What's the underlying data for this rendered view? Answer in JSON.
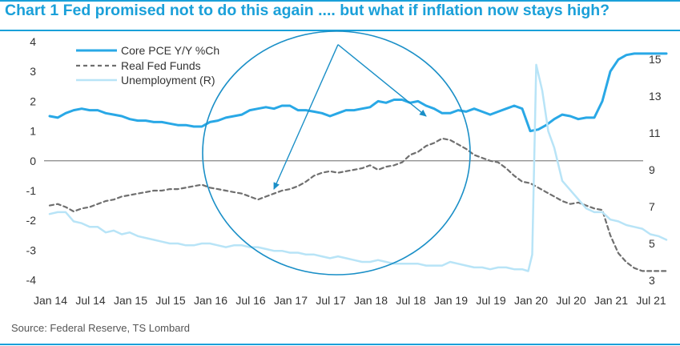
{
  "title": "Chart 1 Fed promised not to do this again .... but what if inflation now stays high?",
  "source": "Source: Federal Reserve, TS Lombard",
  "colors": {
    "title": "#1aa0d9",
    "core_pce": "#29a8e6",
    "real_fed_funds": "#6f6f6f",
    "unemployment": "#b8e4f7",
    "annotation": "#1a8fc7",
    "axis": "#555555",
    "frame": "#1aa0d9"
  },
  "chart_data": {
    "type": "line",
    "title": "Fed promised not to do this again .... but what if inflation now stays high?",
    "x_labels": [
      "Jan 14",
      "Jul 14",
      "Jan 15",
      "Jul 15",
      "Jan 16",
      "Jul 16",
      "Jan 17",
      "Jul 17",
      "Jan 18",
      "Jul 18",
      "Jan 19",
      "Jul 19",
      "Jan 20",
      "Jul 20",
      "Jan 21",
      "Jul 21"
    ],
    "x_range": [
      0,
      15.5
    ],
    "y_left": {
      "min": -4,
      "max": 4,
      "ticks": [
        4,
        3,
        2,
        1,
        0,
        -1,
        -2,
        -3,
        -4
      ]
    },
    "y_right": {
      "min": 3,
      "max": 16,
      "ticks": [
        15,
        13,
        11,
        9,
        7,
        5,
        3
      ]
    },
    "zero_line": true,
    "legend": {
      "position": "top-left",
      "entries": [
        "Core PCE Y/Y %Ch",
        "Real Fed Funds",
        "Unemployment (R)"
      ]
    },
    "series": [
      {
        "name": "Core PCE Y/Y %Ch",
        "axis": "left",
        "style": "solid-thick",
        "x": [
          0,
          0.2,
          0.4,
          0.6,
          0.8,
          1.0,
          1.2,
          1.4,
          1.6,
          1.8,
          2.0,
          2.2,
          2.4,
          2.6,
          2.8,
          3.0,
          3.2,
          3.4,
          3.6,
          3.8,
          4.0,
          4.2,
          4.4,
          4.6,
          4.8,
          5.0,
          5.2,
          5.4,
          5.6,
          5.8,
          6.0,
          6.2,
          6.4,
          6.6,
          6.8,
          7.0,
          7.2,
          7.4,
          7.6,
          7.8,
          8.0,
          8.2,
          8.4,
          8.6,
          8.8,
          9.0,
          9.2,
          9.4,
          9.6,
          9.8,
          10.0,
          10.2,
          10.4,
          10.6,
          10.8,
          11.0,
          11.2,
          11.4,
          11.6,
          11.8,
          12.0,
          12.2,
          12.4,
          12.6,
          12.8,
          13.0,
          13.2,
          13.4,
          13.6,
          13.8,
          14.0,
          14.2,
          14.4,
          14.6,
          14.8,
          15.0,
          15.2,
          15.4
        ],
        "values": [
          1.5,
          1.45,
          1.6,
          1.7,
          1.75,
          1.7,
          1.7,
          1.6,
          1.55,
          1.5,
          1.4,
          1.35,
          1.35,
          1.3,
          1.3,
          1.25,
          1.2,
          1.2,
          1.15,
          1.15,
          1.3,
          1.35,
          1.45,
          1.5,
          1.55,
          1.7,
          1.75,
          1.8,
          1.75,
          1.85,
          1.85,
          1.7,
          1.7,
          1.65,
          1.6,
          1.5,
          1.6,
          1.7,
          1.7,
          1.75,
          1.8,
          2.0,
          1.95,
          2.05,
          2.05,
          1.95,
          2.0,
          1.85,
          1.75,
          1.6,
          1.6,
          1.7,
          1.65,
          1.75,
          1.65,
          1.55,
          1.65,
          1.75,
          1.85,
          1.75,
          1.0,
          1.05,
          1.2,
          1.4,
          1.55,
          1.5,
          1.4,
          1.45,
          1.45,
          2.0,
          3.0,
          3.4,
          3.55,
          3.6,
          3.6,
          3.6,
          3.6,
          3.6
        ]
      },
      {
        "name": "Real Fed Funds",
        "axis": "left",
        "style": "dashed",
        "x": [
          0,
          0.2,
          0.4,
          0.6,
          0.8,
          1.0,
          1.2,
          1.4,
          1.6,
          1.8,
          2.0,
          2.2,
          2.4,
          2.6,
          2.8,
          3.0,
          3.2,
          3.4,
          3.6,
          3.8,
          4.0,
          4.2,
          4.4,
          4.6,
          4.8,
          5.0,
          5.2,
          5.4,
          5.6,
          5.8,
          6.0,
          6.2,
          6.4,
          6.6,
          6.8,
          7.0,
          7.2,
          7.4,
          7.6,
          7.8,
          8.0,
          8.2,
          8.4,
          8.6,
          8.8,
          9.0,
          9.2,
          9.4,
          9.6,
          9.8,
          10.0,
          10.2,
          10.4,
          10.6,
          10.8,
          11.0,
          11.2,
          11.4,
          11.6,
          11.8,
          12.0,
          12.2,
          12.4,
          12.6,
          12.8,
          13.0,
          13.2,
          13.4,
          13.6,
          13.8,
          14.0,
          14.2,
          14.4,
          14.6,
          14.8,
          15.0,
          15.2,
          15.4
        ],
        "values": [
          -1.5,
          -1.45,
          -1.55,
          -1.7,
          -1.6,
          -1.55,
          -1.45,
          -1.35,
          -1.3,
          -1.2,
          -1.15,
          -1.1,
          -1.05,
          -1.0,
          -1.0,
          -0.95,
          -0.95,
          -0.9,
          -0.85,
          -0.8,
          -0.9,
          -0.95,
          -1.0,
          -1.05,
          -1.1,
          -1.2,
          -1.3,
          -1.2,
          -1.1,
          -1.0,
          -0.95,
          -0.85,
          -0.7,
          -0.5,
          -0.4,
          -0.35,
          -0.4,
          -0.35,
          -0.3,
          -0.25,
          -0.15,
          -0.3,
          -0.2,
          -0.15,
          -0.05,
          0.2,
          0.3,
          0.5,
          0.6,
          0.75,
          0.7,
          0.55,
          0.4,
          0.2,
          0.1,
          0.0,
          -0.05,
          -0.25,
          -0.5,
          -0.7,
          -0.75,
          -0.9,
          -1.05,
          -1.2,
          -1.35,
          -1.45,
          -1.4,
          -1.5,
          -1.6,
          -1.65,
          -2.5,
          -3.1,
          -3.4,
          -3.6,
          -3.7,
          -3.7,
          -3.7,
          -3.7
        ]
      },
      {
        "name": "Unemployment (R)",
        "axis": "right",
        "style": "solid",
        "x": [
          0,
          0.2,
          0.4,
          0.6,
          0.8,
          1.0,
          1.2,
          1.4,
          1.6,
          1.8,
          2.0,
          2.2,
          2.4,
          2.6,
          2.8,
          3.0,
          3.2,
          3.4,
          3.6,
          3.8,
          4.0,
          4.2,
          4.4,
          4.6,
          4.8,
          5.0,
          5.2,
          5.4,
          5.6,
          5.8,
          6.0,
          6.2,
          6.4,
          6.6,
          6.8,
          7.0,
          7.2,
          7.4,
          7.6,
          7.8,
          8.0,
          8.2,
          8.4,
          8.6,
          8.8,
          9.0,
          9.2,
          9.4,
          9.6,
          9.8,
          10.0,
          10.2,
          10.4,
          10.6,
          10.8,
          11.0,
          11.2,
          11.4,
          11.6,
          11.8,
          11.95,
          12.05,
          12.15,
          12.3,
          12.45,
          12.6,
          12.8,
          13.0,
          13.2,
          13.4,
          13.6,
          13.8,
          14.0,
          14.2,
          14.4,
          14.6,
          14.8,
          15.0,
          15.2,
          15.4
        ],
        "values": [
          6.6,
          6.7,
          6.7,
          6.2,
          6.1,
          5.9,
          5.9,
          5.6,
          5.7,
          5.5,
          5.6,
          5.4,
          5.3,
          5.2,
          5.1,
          5.0,
          5.0,
          4.9,
          4.9,
          5.0,
          5.0,
          4.9,
          4.8,
          4.9,
          4.9,
          4.8,
          4.8,
          4.7,
          4.6,
          4.6,
          4.5,
          4.5,
          4.4,
          4.4,
          4.3,
          4.2,
          4.3,
          4.2,
          4.1,
          4.0,
          4.0,
          4.1,
          4.0,
          3.9,
          3.9,
          3.9,
          3.9,
          3.8,
          3.8,
          3.8,
          4.0,
          3.9,
          3.8,
          3.7,
          3.7,
          3.6,
          3.7,
          3.7,
          3.6,
          3.6,
          3.5,
          4.4,
          14.7,
          13.3,
          11.1,
          10.2,
          8.4,
          7.9,
          7.4,
          6.9,
          6.7,
          6.7,
          6.3,
          6.2,
          6.0,
          5.9,
          5.8,
          5.5,
          5.4,
          5.2
        ]
      }
    ],
    "annotations": [
      {
        "type": "ellipse",
        "note": "circle highlighting 2016-2019 period"
      },
      {
        "type": "arrow",
        "from": {
          "x": 7.2,
          "y_left": 3.9
        },
        "to": {
          "x": 5.6,
          "y_left": -0.95
        }
      },
      {
        "type": "arrow",
        "from": {
          "x": 7.2,
          "y_left": 3.9
        },
        "to": {
          "x": 9.4,
          "y_left": 1.5
        }
      }
    ]
  }
}
